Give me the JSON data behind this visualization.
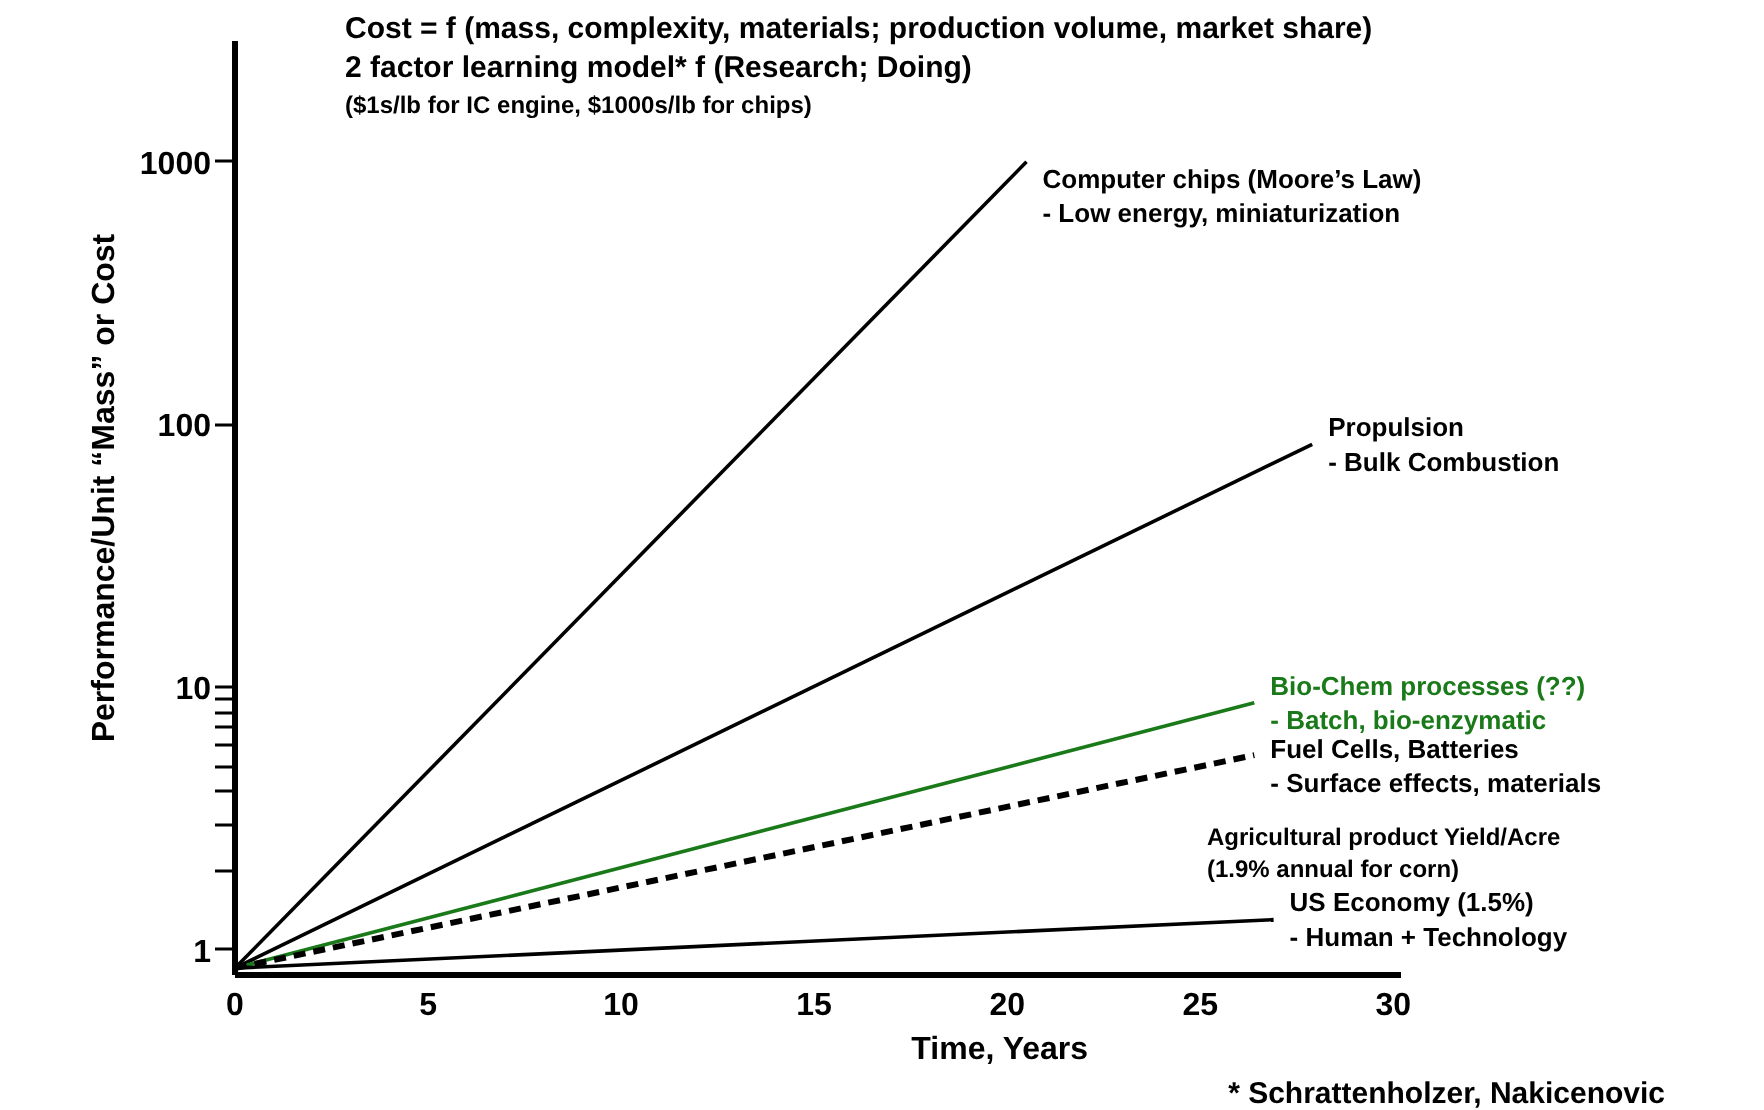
{
  "chart_data": {
    "type": "line",
    "log": "y",
    "grid": false,
    "marker": "none",
    "xlabel": "Time, Years",
    "ylabel": "Performance/Unit “Mass” or Cost",
    "xlim": [
      0,
      30.2
    ],
    "ylim": [
      0.8,
      2900
    ],
    "xticks": [
      0,
      5,
      10,
      15,
      20,
      25,
      30
    ],
    "yticks": [
      1,
      {
        "value": 2,
        "label": null
      },
      {
        "value": 3,
        "label": null
      },
      {
        "value": 4,
        "label": null
      },
      {
        "value": 5,
        "label": null
      },
      {
        "value": 6,
        "label": null
      },
      {
        "value": 7,
        "label": null
      },
      {
        "value": 8,
        "label": null
      },
      {
        "value": 9,
        "label": null
      },
      10,
      100,
      1000
    ],
    "series": [
      {
        "name": "Computer chips (Moore’s Law)\n- Low energy, miniaturization",
        "color": "#000000",
        "x": [
          0,
          20.5
        ],
        "values": [
          0.85,
          1000
        ]
      },
      {
        "name": "Propulsion\n- Bulk Combustion",
        "color": "#000000",
        "x": [
          0,
          27.9
        ],
        "values": [
          0.85,
          84
        ]
      },
      {
        "name": "Bio-Chem processes (??)\n- Batch, bio-enzymatic",
        "color": "#1a7a1a",
        "x": [
          0,
          26.4
        ],
        "values": [
          0.85,
          8.7
        ]
      },
      {
        "name": "Fuel Cells, Batteries\n- Surface effects, materials",
        "color": "#000000",
        "line_style": "dashed",
        "x": [
          0,
          26.4
        ],
        "values": [
          0.85,
          5.5
        ]
      },
      {
        "name": "US Economy (1.5%)\n- Human  + Technology",
        "color": "#000000",
        "x": [
          0,
          26.9
        ],
        "values": [
          0.85,
          1.3
        ]
      }
    ],
    "annotations": [
      "Cost = f (mass, complexity, materials; production volume, market share)",
      "2 factor learning model*   f (Research; Doing)",
      "($1s/lb for IC engine,  $1000s/lb for chips)",
      "Agricultural product Yield/Acre\n (1.9% annual for corn)",
      "* Schrattenholzer, Nakicenovic"
    ]
  }
}
